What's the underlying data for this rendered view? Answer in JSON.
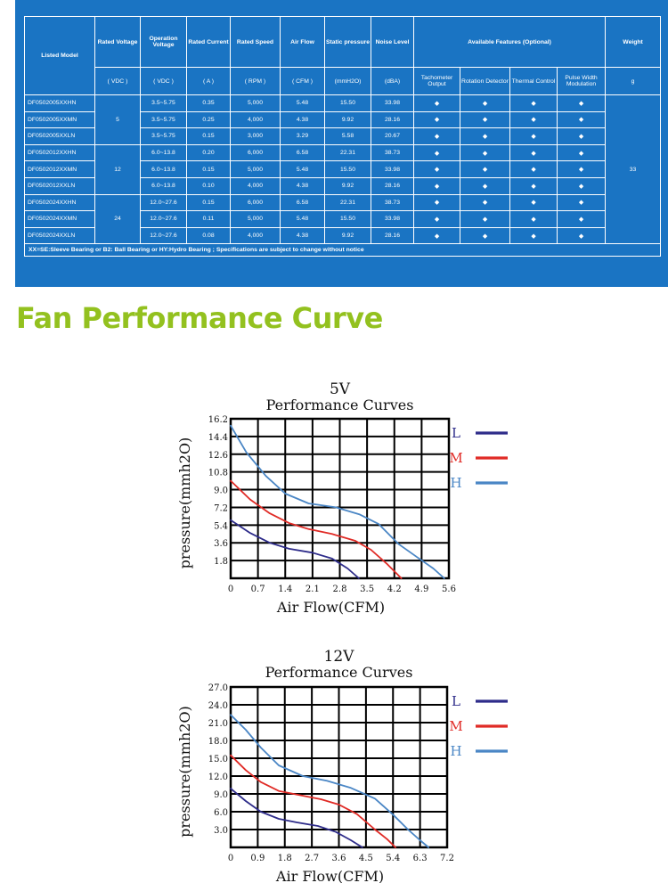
{
  "spec_table": {
    "header_row1": [
      "Listed Model",
      "Rated Voltage",
      "Operation Voltage",
      "Rated Current",
      "Rated Speed",
      "Air Flow",
      "Static pressure",
      "Noise Level",
      "Available Features (Optional)",
      "Weight"
    ],
    "header_row2": [
      "( VDC )",
      "( VDC )",
      "( A )",
      "( RPM )",
      "( CFM )",
      "(mmH2O)",
      "(dBA)",
      "Tachometer Output",
      "Rotation Detector",
      "Thermal Control",
      "Pulse Width Modulation",
      "g"
    ],
    "rows": [
      [
        "DF0502005XXHN",
        "3.5~5.75",
        "0.35",
        "5,000",
        "5.48",
        "15.50",
        "33.98"
      ],
      [
        "DF0502005XXMN",
        "3.5~5.75",
        "0.25",
        "4,000",
        "4.38",
        "9.92",
        "28.16"
      ],
      [
        "DF0502005XXLN",
        "3.5~5.75",
        "0.15",
        "3,000",
        "3.29",
        "5.58",
        "20.67"
      ],
      [
        "DF0502012XXHN",
        "6.0~13.8",
        "0.20",
        "6,000",
        "6.58",
        "22.31",
        "38.73"
      ],
      [
        "DF0502012XXMN",
        "6.0~13.8",
        "0.15",
        "5,000",
        "5.48",
        "15.50",
        "33.98"
      ],
      [
        "DF0502012XXLN",
        "6.0~13.8",
        "0.10",
        "4,000",
        "4.38",
        "9.92",
        "28.16"
      ],
      [
        "DF0502024XXHN",
        "12.0~27.6",
        "0.15",
        "6,000",
        "6.58",
        "22.31",
        "38.73"
      ],
      [
        "DF0502024XXMN",
        "12.0~27.6",
        "0.11",
        "5,000",
        "5.48",
        "15.50",
        "33.98"
      ],
      [
        "DF0502024XXLN",
        "12.0~27.6",
        "0.08",
        "4,000",
        "4.38",
        "9.92",
        "28.16"
      ]
    ],
    "rated_voltages": [
      "5",
      "12",
      "24"
    ],
    "weight": "33",
    "feature_mark": "◆",
    "note": "XX=SE:Sleeve Bearing or B2: Ball Bearing or HY:Hydro Bearing ; Specifications are subject to change without notice"
  },
  "section_title": "Fan Performance Curve",
  "colors": {
    "table_bg": "#1a74c3",
    "section_title": "#93c11f",
    "L": "#2e2c8a",
    "M": "#e02b26",
    "H": "#4a86c5"
  },
  "chart_data": [
    {
      "type": "line",
      "title": "5V",
      "subtitle": "Performance Curves",
      "xlabel": "Air Flow(CFM)",
      "ylabel": "pressure(mmh2O)",
      "xlim": [
        0,
        5.6
      ],
      "ylim": [
        0,
        16.2
      ],
      "x_ticks": [
        "0",
        "0.7",
        "1.4",
        "2.1",
        "2.8",
        "3.5",
        "4.2",
        "4.9",
        "5.6"
      ],
      "y_ticks": [
        "1.8",
        "3.6",
        "5.4",
        "7.2",
        "9.0",
        "10.8",
        "12.6",
        "14.4",
        "16.2"
      ],
      "series": [
        {
          "name": "L",
          "x": [
            0,
            0.5,
            1.0,
            1.5,
            2.1,
            2.6,
            3.0,
            3.29
          ],
          "y": [
            5.9,
            4.6,
            3.6,
            3.0,
            2.6,
            2.0,
            1.0,
            0
          ]
        },
        {
          "name": "M",
          "x": [
            0,
            0.5,
            1.0,
            1.5,
            2.0,
            2.6,
            3.2,
            3.6,
            4.0,
            4.38
          ],
          "y": [
            9.9,
            8.0,
            6.6,
            5.6,
            5.0,
            4.5,
            3.8,
            2.9,
            1.5,
            0
          ]
        },
        {
          "name": "H",
          "x": [
            0,
            0.4,
            0.9,
            1.4,
            2.0,
            2.7,
            3.3,
            3.8,
            4.3,
            4.8,
            5.2,
            5.48
          ],
          "y": [
            15.5,
            12.8,
            10.4,
            8.6,
            7.6,
            7.2,
            6.5,
            5.5,
            3.5,
            2.1,
            1.0,
            0
          ]
        }
      ]
    },
    {
      "type": "line",
      "title": "12V",
      "subtitle": "Performance Curves",
      "xlabel": "Air Flow(CFM)",
      "ylabel": "pressure(mmh2O)",
      "xlim": [
        0,
        7.2
      ],
      "ylim": [
        0,
        27.0
      ],
      "x_ticks": [
        "0",
        "0.9",
        "1.8",
        "2.7",
        "3.6",
        "4.5",
        "5.4",
        "6.3",
        "7.2"
      ],
      "y_ticks": [
        "3.0",
        "6.0",
        "9.0",
        "12.0",
        "15.0",
        "18.0",
        "21.0",
        "24.0",
        "27.0"
      ],
      "series": [
        {
          "name": "L",
          "x": [
            0,
            0.5,
            1.0,
            1.6,
            2.2,
            2.9,
            3.5,
            4.0,
            4.38
          ],
          "y": [
            9.9,
            7.8,
            6.0,
            4.8,
            4.2,
            3.6,
            2.6,
            1.2,
            0
          ]
        },
        {
          "name": "M",
          "x": [
            0,
            0.5,
            1.0,
            1.6,
            2.2,
            3.0,
            3.6,
            4.2,
            4.8,
            5.2,
            5.48
          ],
          "y": [
            15.5,
            13.0,
            11.0,
            9.5,
            8.9,
            8.1,
            7.2,
            5.6,
            3.0,
            1.4,
            0
          ]
        },
        {
          "name": "H",
          "x": [
            0,
            0.5,
            1.0,
            1.6,
            2.4,
            3.2,
            4.0,
            4.8,
            5.4,
            5.9,
            6.3,
            6.58
          ],
          "y": [
            22.3,
            19.8,
            16.8,
            13.8,
            12.0,
            11.2,
            10.0,
            8.2,
            5.5,
            3.0,
            1.2,
            0
          ]
        }
      ]
    }
  ]
}
